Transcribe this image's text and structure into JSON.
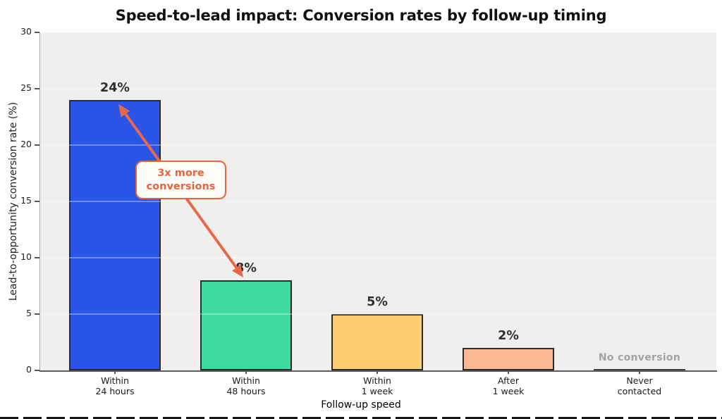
{
  "chart_data": {
    "type": "bar",
    "title": "Speed-to-lead impact: Conversion rates by follow-up timing",
    "xlabel": "Follow-up speed",
    "ylabel": "Lead-to-opportunity conversion rate (%)",
    "categories": [
      "Within\n24 hours",
      "Within\n48 hours",
      "Within\n1 week",
      "After\n1 week",
      "Never\ncontacted"
    ],
    "values": [
      24,
      8,
      5,
      2,
      0
    ],
    "bar_labels": [
      "24%",
      "8%",
      "5%",
      "2%",
      "No conversion"
    ],
    "bar_colors": [
      "#2a55e8",
      "#3edca0",
      "#fcce71",
      "#fcb794",
      "#3f3f3f"
    ],
    "ylim": [
      0,
      30
    ],
    "yticks": [
      0,
      5,
      10,
      15,
      20,
      25,
      30
    ],
    "grid": true,
    "legend": "none",
    "annotation": {
      "line1": "3x more",
      "line2": "conversions",
      "color": "#e8643c",
      "arrow_color": "#e8694a"
    }
  },
  "colors": {
    "figure_background": "#ffffff",
    "plot_background": "#f0efed",
    "bar_border": "#2b2b2b",
    "value_label": "#2f2f2f",
    "zero_value_label": "#a3a3a3",
    "axis_text": "#222222",
    "title_text": "#111111",
    "annotation_orange": "#e8643c"
  }
}
